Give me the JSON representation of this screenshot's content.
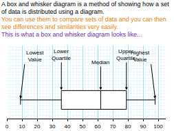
{
  "paragraphs": [
    {
      "text": "A box and whisker diagram is a method of showing how a set of data is distributed using a diagram.",
      "color": "#000000"
    },
    {
      "text": "You can use them to compare sets of data and you can then see differences and similarities very easily.",
      "color": "#e8820c"
    },
    {
      "text": "This is what a box and whisker diagram looks like...",
      "color": "#7030a0"
    }
  ],
  "chart_data": {
    "type": "box",
    "orientation": "horizontal",
    "min": 9,
    "q1": 36,
    "median": 62,
    "q3": 79,
    "max": 98,
    "labels": [
      "Lowest\nValue",
      "Lower\nQuartile",
      "Median",
      "Upper\nQuartile",
      "Highest\nValue"
    ],
    "xlim": [
      0,
      105
    ],
    "xticks": [
      0,
      10,
      20,
      30,
      40,
      50,
      60,
      70,
      80,
      90,
      100
    ],
    "grid": true,
    "color": "#000000"
  }
}
